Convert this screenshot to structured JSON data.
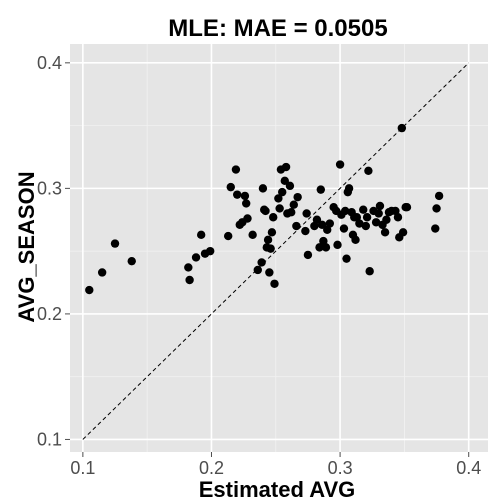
{
  "chart_data": {
    "type": "scatter",
    "title": "MLE: MAE =  0.0505",
    "xlabel": "Estimated AVG",
    "ylabel": "AVG_SEASON",
    "xlim": [
      0.09,
      0.415
    ],
    "ylim": [
      0.09,
      0.415
    ],
    "x_ticks": [
      0.1,
      0.2,
      0.3,
      0.4
    ],
    "x_tick_labels": [
      "0.1",
      "0.2",
      "0.3",
      "0.4"
    ],
    "y_ticks": [
      0.1,
      0.2,
      0.3,
      0.4
    ],
    "y_tick_labels": [
      "0.1",
      "0.2",
      "0.3",
      "0.4"
    ],
    "grid": true,
    "panel_background": "#e5e5e5",
    "grid_color": "#ffffff",
    "point_color": "#000000",
    "reference_line": {
      "from": [
        0.1,
        0.1
      ],
      "to": [
        0.4,
        0.4
      ],
      "style": "dashed"
    },
    "points": [
      [
        0.105,
        0.219
      ],
      [
        0.115,
        0.233
      ],
      [
        0.125,
        0.256
      ],
      [
        0.138,
        0.242
      ],
      [
        0.182,
        0.237
      ],
      [
        0.183,
        0.227
      ],
      [
        0.188,
        0.245
      ],
      [
        0.192,
        0.263
      ],
      [
        0.195,
        0.248
      ],
      [
        0.199,
        0.25
      ],
      [
        0.213,
        0.262
      ],
      [
        0.215,
        0.301
      ],
      [
        0.219,
        0.315
      ],
      [
        0.22,
        0.295
      ],
      [
        0.222,
        0.271
      ],
      [
        0.224,
        0.273
      ],
      [
        0.226,
        0.294
      ],
      [
        0.227,
        0.288
      ],
      [
        0.228,
        0.276
      ],
      [
        0.232,
        0.263
      ],
      [
        0.236,
        0.235
      ],
      [
        0.239,
        0.241
      ],
      [
        0.24,
        0.3
      ],
      [
        0.241,
        0.283
      ],
      [
        0.242,
        0.282
      ],
      [
        0.243,
        0.253
      ],
      [
        0.244,
        0.259
      ],
      [
        0.245,
        0.233
      ],
      [
        0.246,
        0.252
      ],
      [
        0.247,
        0.265
      ],
      [
        0.248,
        0.277
      ],
      [
        0.249,
        0.224
      ],
      [
        0.252,
        0.292
      ],
      [
        0.253,
        0.284
      ],
      [
        0.254,
        0.315
      ],
      [
        0.255,
        0.297
      ],
      [
        0.257,
        0.306
      ],
      [
        0.258,
        0.317
      ],
      [
        0.259,
        0.28
      ],
      [
        0.261,
        0.302
      ],
      [
        0.262,
        0.281
      ],
      [
        0.264,
        0.287
      ],
      [
        0.266,
        0.27
      ],
      [
        0.267,
        0.293
      ],
      [
        0.273,
        0.266
      ],
      [
        0.274,
        0.28
      ],
      [
        0.275,
        0.247
      ],
      [
        0.28,
        0.27
      ],
      [
        0.282,
        0.275
      ],
      [
        0.284,
        0.253
      ],
      [
        0.285,
        0.299
      ],
      [
        0.286,
        0.271
      ],
      [
        0.287,
        0.258
      ],
      [
        0.289,
        0.253
      ],
      [
        0.29,
        0.267
      ],
      [
        0.292,
        0.272
      ],
      [
        0.295,
        0.285
      ],
      [
        0.297,
        0.282
      ],
      [
        0.298,
        0.255
      ],
      [
        0.3,
        0.319
      ],
      [
        0.301,
        0.279
      ],
      [
        0.303,
        0.268
      ],
      [
        0.304,
        0.282
      ],
      [
        0.305,
        0.244
      ],
      [
        0.306,
        0.297
      ],
      [
        0.307,
        0.3
      ],
      [
        0.309,
        0.281
      ],
      [
        0.31,
        0.263
      ],
      [
        0.311,
        0.277
      ],
      [
        0.312,
        0.259
      ],
      [
        0.313,
        0.277
      ],
      [
        0.315,
        0.272
      ],
      [
        0.318,
        0.283
      ],
      [
        0.32,
        0.27
      ],
      [
        0.321,
        0.277
      ],
      [
        0.322,
        0.314
      ],
      [
        0.323,
        0.234
      ],
      [
        0.326,
        0.282
      ],
      [
        0.328,
        0.273
      ],
      [
        0.33,
        0.28
      ],
      [
        0.331,
        0.286
      ],
      [
        0.333,
        0.271
      ],
      [
        0.335,
        0.265
      ],
      [
        0.336,
        0.275
      ],
      [
        0.338,
        0.281
      ],
      [
        0.34,
        0.282
      ],
      [
        0.343,
        0.282
      ],
      [
        0.345,
        0.277
      ],
      [
        0.346,
        0.261
      ],
      [
        0.348,
        0.348
      ],
      [
        0.349,
        0.265
      ],
      [
        0.351,
        0.285
      ],
      [
        0.352,
        0.285
      ],
      [
        0.374,
        0.268
      ],
      [
        0.375,
        0.284
      ],
      [
        0.377,
        0.294
      ]
    ]
  }
}
